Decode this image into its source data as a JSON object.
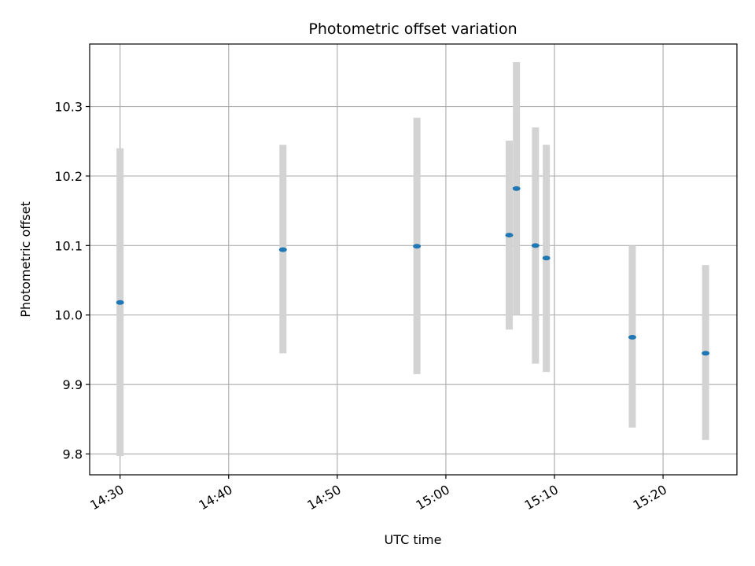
{
  "chart_data": {
    "type": "scatter",
    "title": "Photometric offset variation",
    "xlabel": "UTC time",
    "ylabel": "Photometric offset",
    "x_ticks": [
      "14:30",
      "14:40",
      "14:50",
      "15:00",
      "15:10",
      "15:20"
    ],
    "y_ticks": [
      "9.8",
      "9.9",
      "10.0",
      "10.1",
      "10.2",
      "10.3"
    ],
    "xlim": [
      "14:27:12",
      "15:26:48"
    ],
    "ylim": [
      9.77,
      10.39
    ],
    "grid": true,
    "colors": {
      "marker": "#1f77b4",
      "errorbar": "#d3d3d3",
      "grid": "#b0b0b0"
    },
    "points": [
      {
        "x": "14:30:00",
        "y": 10.018,
        "ylow": 9.797,
        "yhigh": 10.24
      },
      {
        "x": "14:45:00",
        "y": 10.094,
        "ylow": 9.945,
        "yhigh": 10.245
      },
      {
        "x": "14:57:20",
        "y": 10.099,
        "ylow": 9.915,
        "yhigh": 10.284
      },
      {
        "x": "15:05:50",
        "y": 10.115,
        "ylow": 9.979,
        "yhigh": 10.251
      },
      {
        "x": "15:06:30",
        "y": 10.182,
        "ylow": 10.0,
        "yhigh": 10.364
      },
      {
        "x": "15:08:15",
        "y": 10.1,
        "ylow": 9.93,
        "yhigh": 10.27
      },
      {
        "x": "15:09:15",
        "y": 10.082,
        "ylow": 9.918,
        "yhigh": 10.245
      },
      {
        "x": "15:17:10",
        "y": 9.968,
        "ylow": 9.838,
        "yhigh": 10.1
      },
      {
        "x": "15:23:55",
        "y": 9.945,
        "ylow": 9.82,
        "yhigh": 10.072
      }
    ]
  }
}
